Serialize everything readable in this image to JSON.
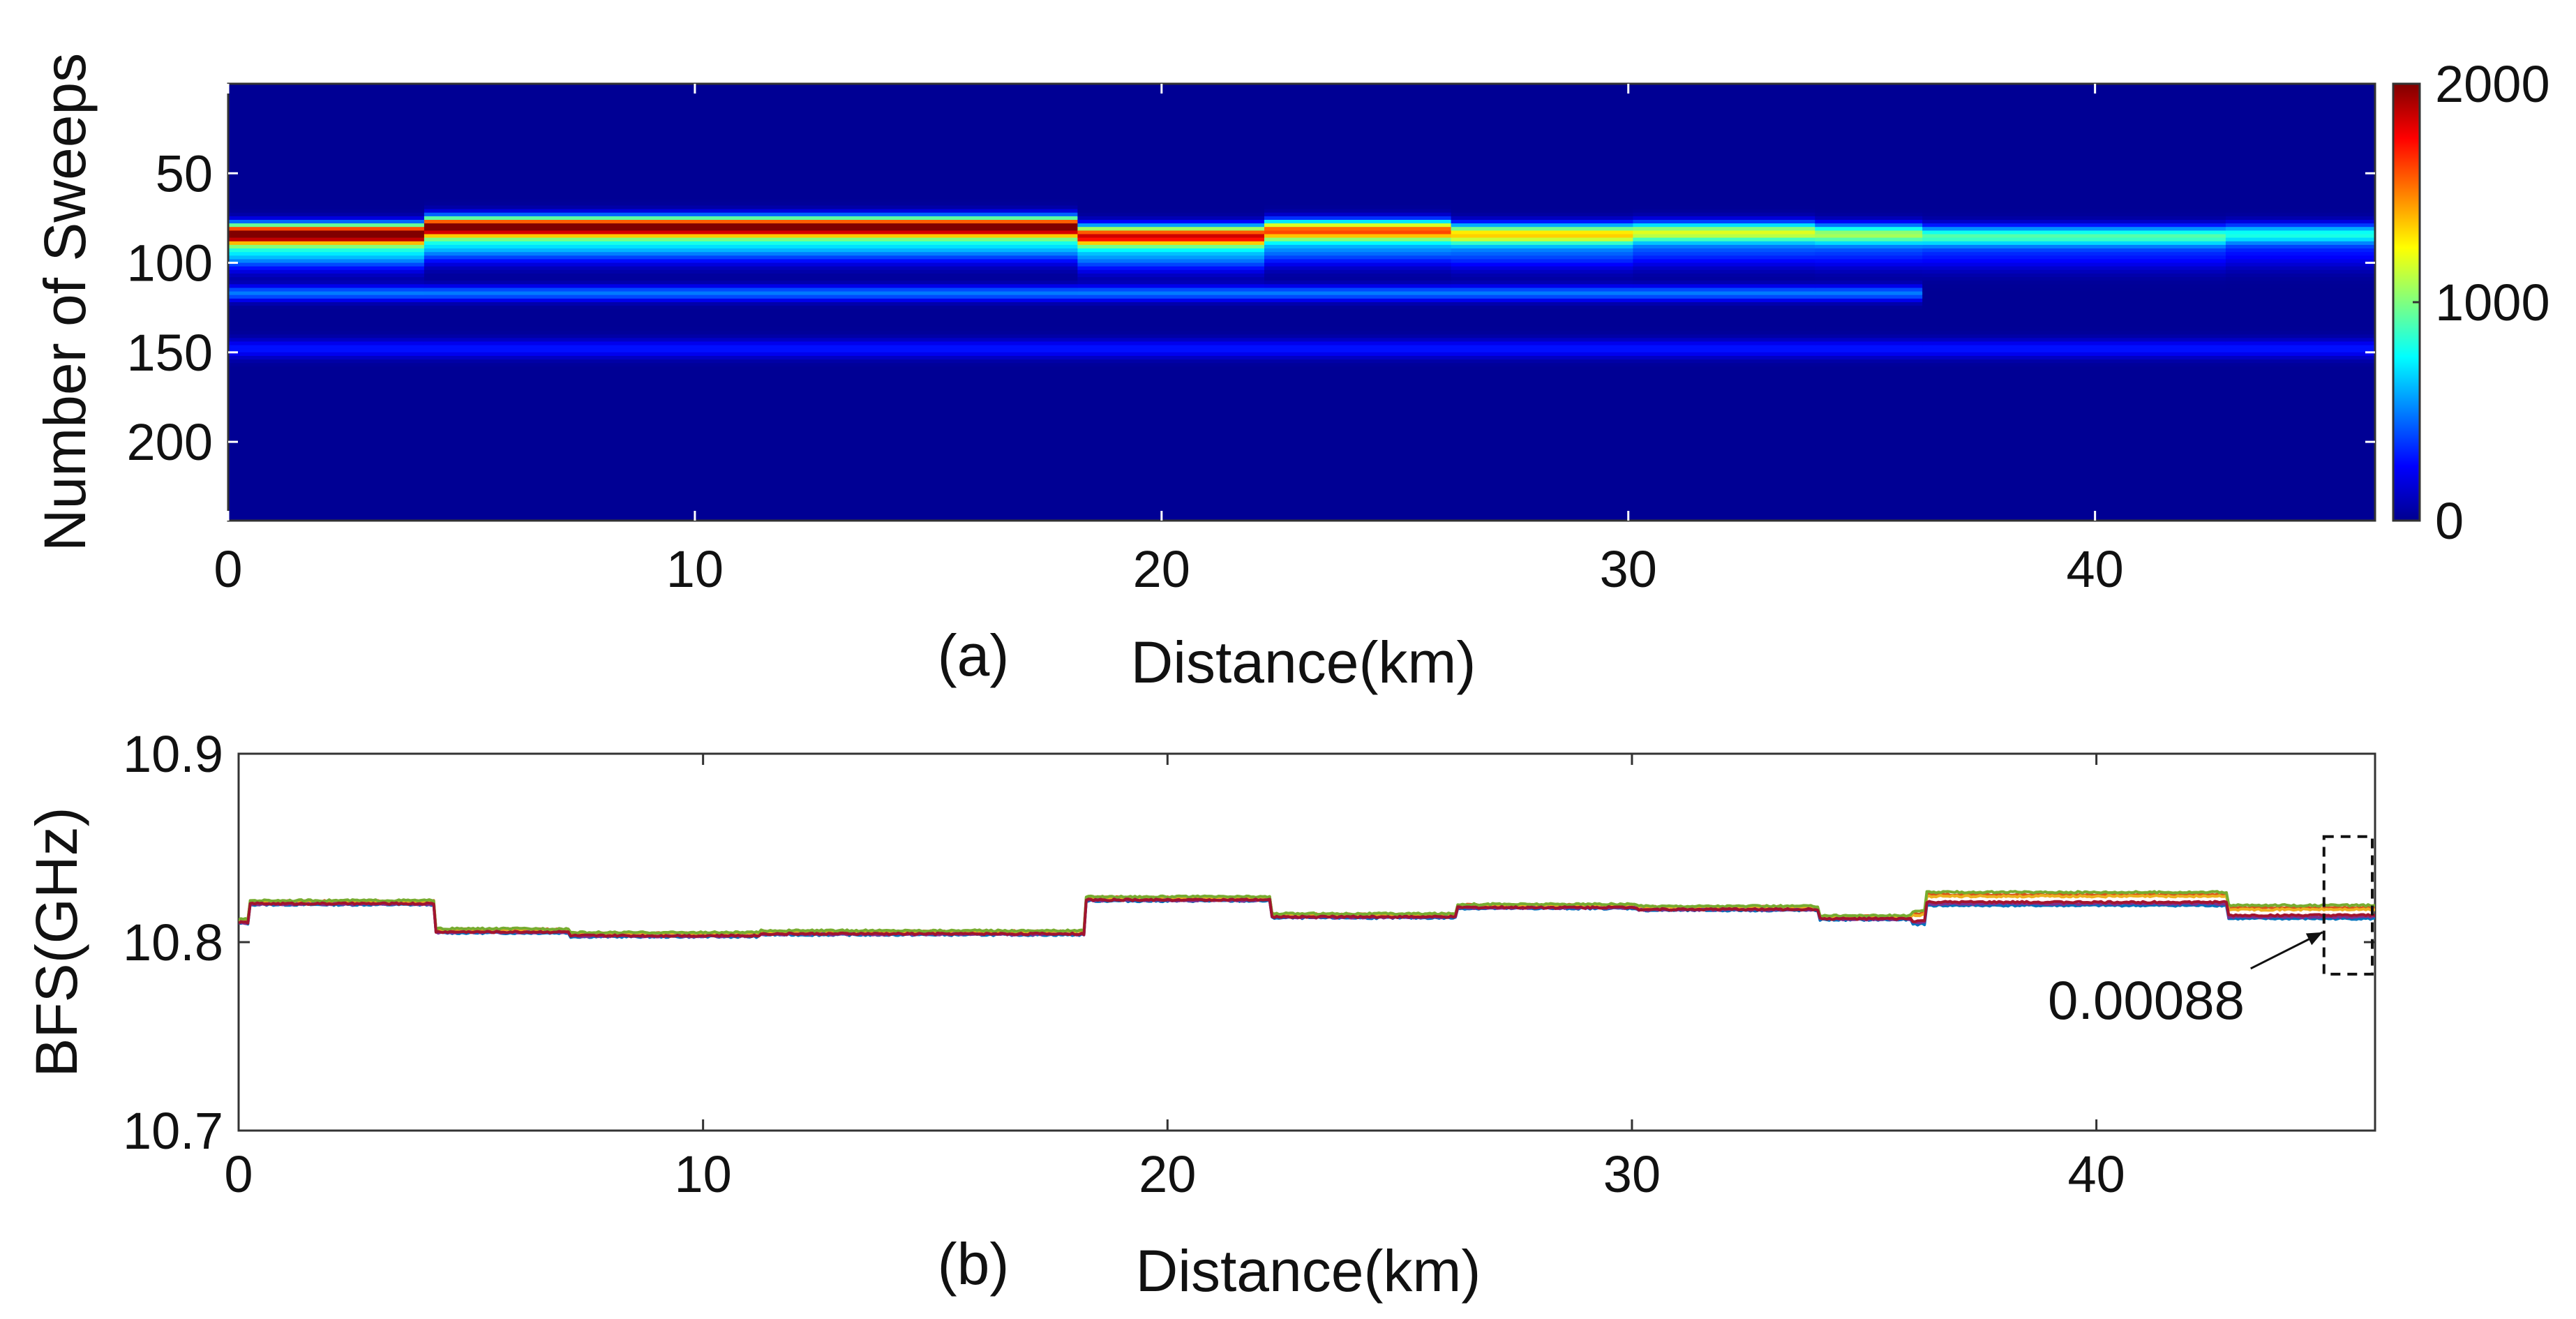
{
  "chart_data": [
    {
      "panel_label": "(a)",
      "type": "heatmap",
      "xlabel": "Distance(km)",
      "ylabel": "Number of Sweeps",
      "xlim": [
        0,
        46
      ],
      "ylim": [
        0,
        244
      ],
      "y_reversed": true,
      "x_ticks": [
        0,
        10,
        20,
        30,
        40
      ],
      "y_ticks": [
        50,
        100,
        150,
        200
      ],
      "colormap": "jet",
      "colorbar": {
        "min": 0,
        "max": 2000,
        "ticks": [
          0,
          1000,
          2000
        ]
      },
      "grid": false,
      "features": [
        {
          "description": "main gain peak band",
          "x_range": [
            0,
            46
          ],
          "sweep_center": 83,
          "peak_value": [
            2000,
            500
          ]
        },
        {
          "description": "secondary band",
          "x_range": [
            0,
            36
          ],
          "sweep_center": 117,
          "peak_value": 450
        },
        {
          "description": "weak band",
          "x_range": [
            0,
            46
          ],
          "sweep_center": 148,
          "peak_value": 250
        }
      ],
      "peak_track": [
        {
          "x0": 0,
          "x1": 4.2,
          "sweep": 84,
          "amp": 2000
        },
        {
          "x0": 4.2,
          "x1": 18.2,
          "sweep": 80,
          "amp": 1950
        },
        {
          "x0": 18.2,
          "x1": 22.2,
          "sweep": 85,
          "amp": 1650
        },
        {
          "x0": 22.2,
          "x1": 26.2,
          "sweep": 82,
          "amp": 1450
        },
        {
          "x0": 26.2,
          "x1": 30.1,
          "sweep": 84,
          "amp": 1200
        },
        {
          "x0": 30.1,
          "x1": 34.0,
          "sweep": 83,
          "amp": 1050
        },
        {
          "x0": 34.0,
          "x1": 36.3,
          "sweep": 84,
          "amp": 950
        },
        {
          "x0": 36.3,
          "x1": 42.8,
          "sweep": 85,
          "amp": 800
        },
        {
          "x0": 42.8,
          "x1": 46,
          "sweep": 84,
          "amp": 700
        }
      ]
    },
    {
      "panel_label": "(b)",
      "type": "line",
      "xlabel": "Distance(km)",
      "ylabel": "BFS(GHz)",
      "xlim": [
        0,
        46
      ],
      "ylim": [
        10.7,
        10.9
      ],
      "x_ticks": [
        0,
        10,
        20,
        30,
        40
      ],
      "y_ticks": [
        10.7,
        10.8,
        10.9
      ],
      "grid": false,
      "annotation": {
        "text": "0.00088",
        "points_to": [
          44.9,
          10.803
        ],
        "box_x": [
          44.9,
          46
        ],
        "box_y": [
          10.783,
          10.856
        ]
      },
      "baseline_segments": [
        {
          "x0": 0,
          "x1": 0.2,
          "y": 10.811
        },
        {
          "x0": 0.2,
          "x1": 4.2,
          "y": 10.821
        },
        {
          "x0": 4.2,
          "x1": 7.1,
          "y": 10.806
        },
        {
          "x0": 7.1,
          "x1": 11.2,
          "y": 10.804
        },
        {
          "x0": 11.2,
          "x1": 18.2,
          "y": 10.805
        },
        {
          "x0": 18.2,
          "x1": 22.2,
          "y": 10.823
        },
        {
          "x0": 22.2,
          "x1": 26.2,
          "y": 10.814
        },
        {
          "x0": 26.2,
          "x1": 30.1,
          "y": 10.819
        },
        {
          "x0": 30.1,
          "x1": 34.0,
          "y": 10.818
        },
        {
          "x0": 34.0,
          "x1": 36.3,
          "y": 10.813
        },
        {
          "x0": 36.3,
          "x1": 42.8,
          "y": 10.823
        },
        {
          "x0": 42.8,
          "x1": 46,
          "y": 10.816
        }
      ],
      "series": [
        {
          "color": "#0072BD",
          "values_offset": -0.0016
        },
        {
          "color": "#D95319",
          "values_offset": 0.001
        },
        {
          "color": "#EDB120",
          "values_offset": 0.0006
        },
        {
          "color": "#7E2F8E",
          "values_offset": -0.0012
        },
        {
          "color": "#77AC30",
          "values_offset": 0.0016
        },
        {
          "color": "#A2142F",
          "values_offset": -0.0008
        }
      ]
    }
  ]
}
